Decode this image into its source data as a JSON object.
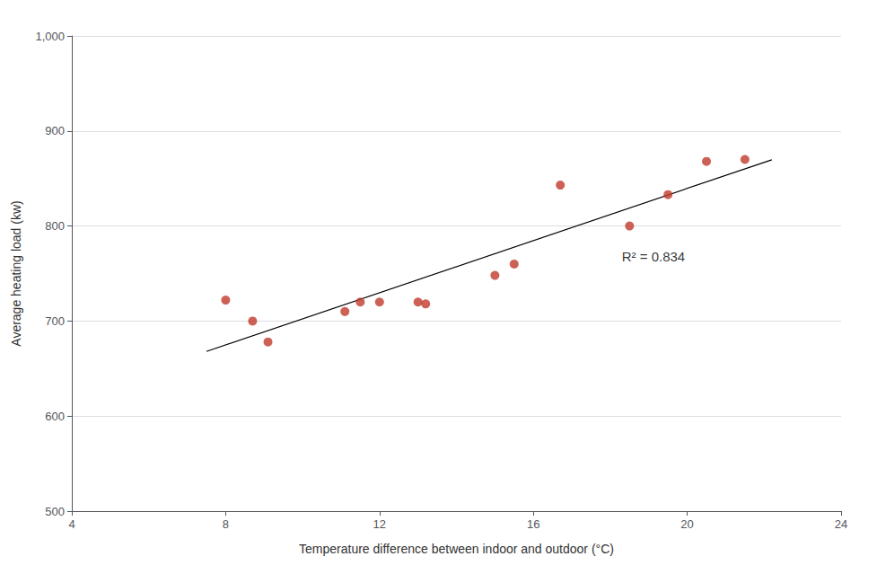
{
  "chart_data": {
    "type": "scatter",
    "x": [
      8.0,
      8.7,
      9.1,
      11.1,
      11.5,
      12.0,
      13.0,
      13.2,
      15.0,
      15.5,
      16.7,
      18.5,
      19.5,
      20.5,
      21.5
    ],
    "values": [
      722,
      700,
      678,
      710,
      720,
      720,
      720,
      718,
      748,
      760,
      843,
      800,
      833,
      868,
      870
    ],
    "color": "#c0392b",
    "trend_line": {
      "type": "line",
      "x": [
        7.5,
        22.2
      ],
      "values": [
        667.97,
        869.74
      ],
      "color": "#000000"
    },
    "annotations": [
      {
        "text": "R² = 0.834",
        "x": 18.3,
        "y": 768
      }
    ],
    "x_label": "Temperature difference between indoor and outdoor (°C)",
    "y_label": "Average heating load (kw)",
    "xlim": [
      4,
      24
    ],
    "ylim": [
      500,
      1000
    ],
    "xticks": [
      4,
      8,
      12,
      16,
      20,
      24
    ],
    "yticks": [
      500,
      600,
      700,
      800,
      900,
      {
        "value": 1000,
        "label": "1,000"
      }
    ],
    "grid": true
  }
}
